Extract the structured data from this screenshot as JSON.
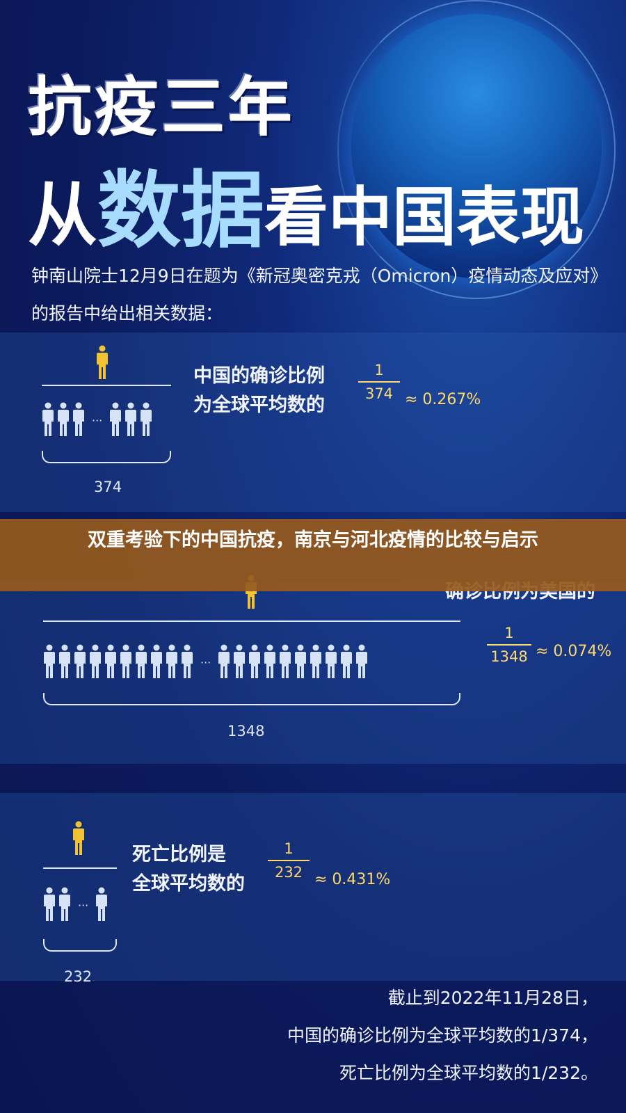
{
  "title_line1": "抗疫三年",
  "title_line2": {
    "a": "从",
    "b": "数据",
    "c": "看中国表现"
  },
  "intro": "钟南山院士12月9日在题为《新冠奥密克戎（Omicron）疫情动态及应对》的报告中给出相关数据：",
  "banner": "双重考验下的中国抗疫，南京与河北疫情的比较与启示",
  "panels": [
    {
      "label1": "中国的确诊比例",
      "label2": "为全球平均数的",
      "numerator": "1",
      "denominator": "374",
      "approx": "≈ 0.267%",
      "count": "374"
    },
    {
      "label1": "确诊比例为美国的",
      "label2": "",
      "numerator": "1",
      "denominator": "1348",
      "approx": "≈ 0.074%",
      "count": "1348"
    },
    {
      "label1": "死亡比例是",
      "label2": "全球平均数的",
      "numerator": "1",
      "denominator": "232",
      "approx": "≈ 0.431%",
      "count": "232"
    }
  ],
  "footer": [
    "截止到2022年11月28日，",
    "中国的确诊比例为全球平均数的1/374，",
    "死亡比例为全球平均数的1/232。"
  ],
  "colors": {
    "highlight_person": "#f2c230",
    "person": "#d6e2f5",
    "banner": "#965a1e",
    "accent_text": "#ffd86a"
  }
}
